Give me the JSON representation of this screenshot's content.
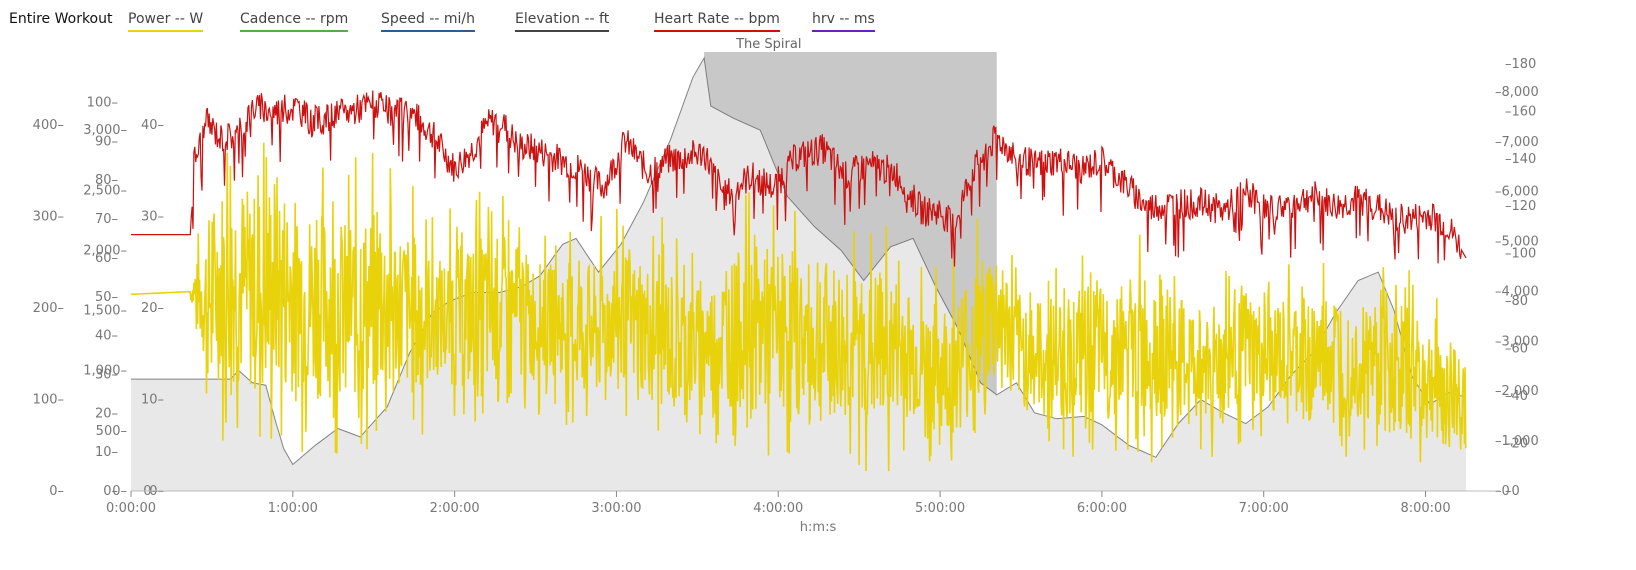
{
  "legend": {
    "title": "Entire Workout",
    "items": [
      {
        "label": "Power  -- W",
        "color": "#e8d20c"
      },
      {
        "label": "Cadence  -- rpm",
        "color": "#5aa84f"
      },
      {
        "label": "Speed  -- mi/h",
        "color": "#2d5f8a"
      },
      {
        "label": "Elevation  -- ft",
        "color": "#444444"
      },
      {
        "label": "Heart Rate  -- bpm",
        "color": "#cc1111"
      },
      {
        "label": "hrv  -- ms",
        "color": "#6a1fc9"
      }
    ]
  },
  "chart_data": {
    "type": "line",
    "xlabel": "h:m:s",
    "x_tick_labels": [
      "0:00:00",
      "1:00:00",
      "2:00:00",
      "3:00:00",
      "4:00:00",
      "5:00:00",
      "6:00:00",
      "7:00:00",
      "8:00:00"
    ],
    "x_range_seconds": [
      0,
      29700
    ],
    "selection": {
      "label": "The Spiral",
      "start_seconds": 12750,
      "end_seconds": 19260
    },
    "axes": {
      "power": {
        "range": [
          0,
          480
        ],
        "ticks": [
          "0",
          "100",
          "200",
          "300",
          "400"
        ]
      },
      "heartrate": {
        "range": [
          0,
          113
        ],
        "ticks": [
          "0",
          "10",
          "20",
          "30",
          "40",
          "50",
          "60",
          "70",
          "80",
          "90",
          "100"
        ]
      },
      "elevation": {
        "range": [
          0,
          3650
        ],
        "ticks": [
          "0",
          "500",
          "1,000",
          "1,500",
          "2,000",
          "2,500",
          "3,000"
        ]
      },
      "speed": {
        "range": [
          0,
          48
        ],
        "ticks": [
          "0",
          "10",
          "20",
          "30",
          "40"
        ]
      },
      "cadence": {
        "range": [
          0,
          130
        ],
        "ticks": [
          "0"
        ]
      },
      "right_a": {
        "range": [
          0,
          8800
        ],
        "ticks": [
          "0",
          "1,000",
          "2,000",
          "3,000",
          "4,000",
          "5,000",
          "6,000",
          "7,000",
          "8,000"
        ]
      },
      "right_b": {
        "range": [
          0,
          185
        ],
        "ticks": [
          "0",
          "20",
          "40",
          "60",
          "80",
          "100",
          "120",
          "140",
          "160",
          "180"
        ]
      }
    },
    "series": [
      {
        "name": "Elevation",
        "color": "#666666",
        "points": [
          [
            0,
            930
          ],
          [
            2200,
            930
          ],
          [
            2400,
            1000
          ],
          [
            2700,
            900
          ],
          [
            3000,
            880
          ],
          [
            3200,
            600
          ],
          [
            3400,
            350
          ],
          [
            3600,
            220
          ],
          [
            4100,
            380
          ],
          [
            4600,
            520
          ],
          [
            5100,
            450
          ],
          [
            5700,
            700
          ],
          [
            6200,
            1150
          ],
          [
            6700,
            1480
          ],
          [
            7100,
            1580
          ],
          [
            7600,
            1650
          ],
          [
            8200,
            1650
          ],
          [
            8700,
            1700
          ],
          [
            9100,
            1790
          ],
          [
            9600,
            2050
          ],
          [
            9900,
            2100
          ],
          [
            10400,
            1820
          ],
          [
            10900,
            2050
          ],
          [
            11400,
            2400
          ],
          [
            12000,
            2920
          ],
          [
            12500,
            3440
          ],
          [
            12750,
            3600
          ],
          [
            12900,
            3200
          ],
          [
            13400,
            3100
          ],
          [
            14000,
            3000
          ],
          [
            14600,
            2450
          ],
          [
            15200,
            2200
          ],
          [
            15800,
            2000
          ],
          [
            16300,
            1750
          ],
          [
            16900,
            2030
          ],
          [
            17400,
            2100
          ],
          [
            17900,
            1700
          ],
          [
            18400,
            1350
          ],
          [
            18900,
            900
          ],
          [
            19260,
            800
          ],
          [
            19700,
            900
          ],
          [
            20100,
            650
          ],
          [
            20600,
            600
          ],
          [
            21200,
            620
          ],
          [
            21600,
            550
          ],
          [
            22200,
            380
          ],
          [
            22800,
            280
          ],
          [
            23300,
            560
          ],
          [
            23800,
            760
          ],
          [
            24300,
            650
          ],
          [
            24800,
            560
          ],
          [
            25300,
            700
          ],
          [
            25800,
            960
          ],
          [
            26300,
            1150
          ],
          [
            26800,
            1480
          ],
          [
            27300,
            1750
          ],
          [
            27750,
            1820
          ],
          [
            28100,
            1500
          ],
          [
            28500,
            950
          ],
          [
            28900,
            720
          ],
          [
            29300,
            820
          ],
          [
            29700,
            780
          ]
        ]
      },
      {
        "name": "Heart Rate",
        "color": "#cc1111",
        "points": [
          [
            0,
            66
          ],
          [
            1320,
            66
          ],
          [
            1400,
            85
          ],
          [
            1700,
            95
          ],
          [
            2000,
            91
          ],
          [
            2400,
            92
          ],
          [
            2700,
            99
          ],
          [
            3100,
            98
          ],
          [
            3300,
            98
          ],
          [
            3700,
            99
          ],
          [
            4000,
            95
          ],
          [
            4400,
            96
          ],
          [
            4900,
            98
          ],
          [
            5400,
            100
          ],
          [
            5800,
            97
          ],
          [
            6200,
            98
          ],
          [
            6700,
            92
          ],
          [
            7200,
            83
          ],
          [
            7600,
            88
          ],
          [
            7900,
            94
          ],
          [
            8200,
            96
          ],
          [
            8600,
            89
          ],
          [
            9000,
            88
          ],
          [
            9400,
            86
          ],
          [
            10000,
            83
          ],
          [
            10500,
            78
          ],
          [
            11000,
            90
          ],
          [
            11500,
            82
          ],
          [
            11900,
            85
          ],
          [
            12300,
            86
          ],
          [
            12750,
            87
          ],
          [
            13200,
            76
          ],
          [
            13800,
            81
          ],
          [
            14300,
            78
          ],
          [
            14800,
            86
          ],
          [
            15400,
            88
          ],
          [
            15900,
            81
          ],
          [
            16400,
            84
          ],
          [
            17000,
            82
          ],
          [
            17600,
            72
          ],
          [
            18000,
            72
          ],
          [
            18300,
            68
          ],
          [
            18700,
            82
          ],
          [
            19260,
            91
          ],
          [
            19700,
            86
          ],
          [
            20100,
            84
          ],
          [
            20600,
            85
          ],
          [
            21200,
            83
          ],
          [
            21600,
            85
          ],
          [
            22200,
            78
          ],
          [
            22600,
            73
          ],
          [
            23300,
            74
          ],
          [
            23800,
            74
          ],
          [
            24300,
            72
          ],
          [
            24800,
            77
          ],
          [
            25300,
            72
          ],
          [
            25800,
            74
          ],
          [
            26300,
            76
          ],
          [
            26800,
            73
          ],
          [
            27300,
            75
          ],
          [
            27750,
            73
          ],
          [
            28100,
            70
          ],
          [
            28500,
            70
          ],
          [
            28900,
            71
          ],
          [
            29300,
            68
          ],
          [
            29700,
            60
          ]
        ]
      },
      {
        "name": "Power",
        "color": "#e8d20c",
        "band": [
          [
            0,
            215,
            215
          ],
          [
            1300,
            218,
            218
          ],
          [
            1700,
            60,
            360
          ],
          [
            2200,
            40,
            440
          ],
          [
            2700,
            30,
            400
          ],
          [
            3200,
            20,
            440
          ],
          [
            3700,
            40,
            390
          ],
          [
            4200,
            30,
            380
          ],
          [
            4800,
            40,
            360
          ],
          [
            5300,
            20,
            380
          ],
          [
            5800,
            60,
            360
          ],
          [
            6300,
            40,
            340
          ],
          [
            6800,
            80,
            300
          ],
          [
            7300,
            60,
            320
          ],
          [
            7800,
            40,
            340
          ],
          [
            8300,
            80,
            330
          ],
          [
            8800,
            60,
            310
          ],
          [
            9300,
            100,
            280
          ],
          [
            9800,
            60,
            300
          ],
          [
            10300,
            40,
            300
          ],
          [
            10800,
            80,
            310
          ],
          [
            11300,
            60,
            300
          ],
          [
            11800,
            40,
            300
          ],
          [
            12300,
            30,
            290
          ],
          [
            12750,
            60,
            260
          ],
          [
            13200,
            40,
            300
          ],
          [
            13700,
            30,
            330
          ],
          [
            14200,
            20,
            330
          ],
          [
            14700,
            30,
            320
          ],
          [
            15200,
            20,
            300
          ],
          [
            15700,
            10,
            310
          ],
          [
            16200,
            20,
            290
          ],
          [
            16700,
            10,
            300
          ],
          [
            17200,
            30,
            280
          ],
          [
            17700,
            20,
            250
          ],
          [
            18200,
            10,
            260
          ],
          [
            18700,
            20,
            300
          ],
          [
            19260,
            60,
            330
          ],
          [
            19700,
            50,
            260
          ],
          [
            20200,
            40,
            250
          ],
          [
            20700,
            30,
            260
          ],
          [
            21200,
            40,
            270
          ],
          [
            21700,
            30,
            270
          ],
          [
            22200,
            40,
            260
          ],
          [
            22700,
            20,
            310
          ],
          [
            23200,
            30,
            260
          ],
          [
            23700,
            40,
            240
          ],
          [
            24200,
            30,
            260
          ],
          [
            24700,
            50,
            270
          ],
          [
            25200,
            40,
            240
          ],
          [
            25700,
            40,
            250
          ],
          [
            26200,
            30,
            260
          ],
          [
            26700,
            30,
            270
          ],
          [
            27200,
            40,
            250
          ],
          [
            27700,
            20,
            260
          ],
          [
            28200,
            10,
            260
          ],
          [
            28700,
            20,
            230
          ],
          [
            29200,
            10,
            210
          ],
          [
            29700,
            5,
            200
          ]
        ]
      }
    ]
  }
}
